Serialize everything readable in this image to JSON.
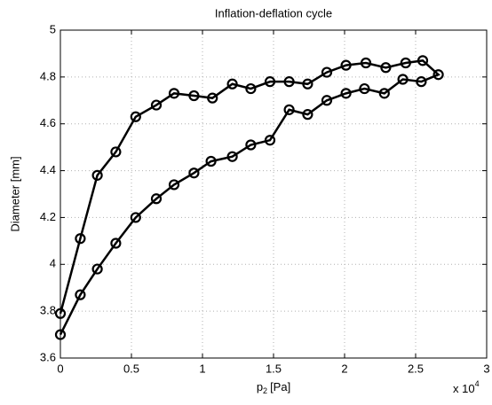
{
  "chart_data": {
    "type": "line",
    "title": "Inflation-deflation cycle",
    "ylabel": "Diameter [mm]",
    "xlabel_main": "p",
    "xlabel_sub": "2",
    "xlabel_unit": "[Pa]",
    "x_multiplier": "x 10",
    "x_multiplier_exp": "4",
    "xlim": [
      0,
      3
    ],
    "xticks": [
      0,
      0.5,
      1,
      1.5,
      2,
      2.5,
      3
    ],
    "ylim": [
      3.6,
      5
    ],
    "yticks": [
      3.6,
      3.8,
      4,
      4.2,
      4.4,
      4.6,
      4.8,
      5
    ],
    "grid": true,
    "series": [
      {
        "color": "#000000",
        "x": [
          0,
          0.14,
          0.26,
          0.39,
          0.53,
          0.675,
          0.8,
          0.94,
          1.06,
          1.21,
          1.34,
          1.475,
          1.61,
          1.74,
          1.875,
          2.01,
          2.14,
          2.28,
          2.41,
          2.54,
          2.66,
          2.55,
          2.43,
          2.29,
          2.15,
          2.01,
          1.875,
          1.74,
          1.61,
          1.475,
          1.34,
          1.21,
          1.07,
          0.94,
          0.8,
          0.675,
          0.53,
          0.39,
          0.26,
          0.14,
          0
        ],
        "values": [
          3.7,
          3.87,
          3.98,
          4.09,
          4.2,
          4.28,
          4.34,
          4.39,
          4.44,
          4.46,
          4.51,
          4.53,
          4.66,
          4.64,
          4.7,
          4.73,
          4.75,
          4.73,
          4.79,
          4.78,
          4.81,
          4.87,
          4.86,
          4.84,
          4.86,
          4.85,
          4.82,
          4.77,
          4.78,
          4.78,
          4.75,
          4.77,
          4.71,
          4.72,
          4.73,
          4.68,
          4.63,
          4.48,
          4.38,
          4.11,
          3.79
        ]
      }
    ]
  }
}
